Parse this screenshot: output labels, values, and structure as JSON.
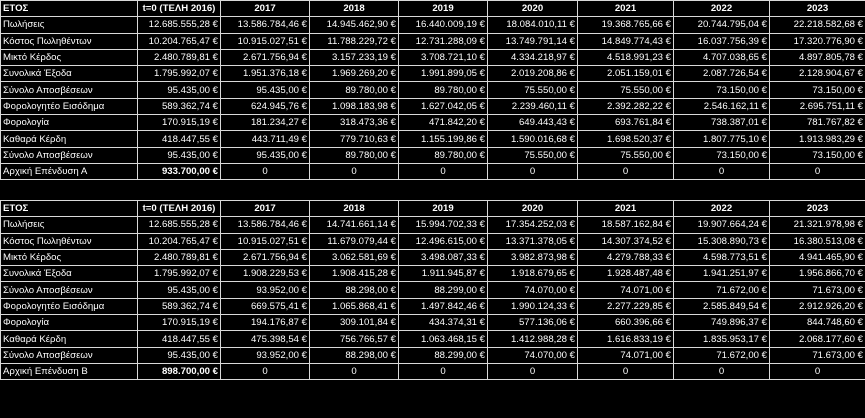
{
  "table_a": {
    "header": [
      "ΕΤΟΣ",
      "t=0 (ΤΕΛΗ 2016)",
      "2017",
      "2018",
      "2019",
      "2020",
      "2021",
      "2022",
      "2023"
    ],
    "rows": [
      [
        "Πωλήσεις",
        "12.685.555,28 €",
        "13.586.784,46 €",
        "14.945.462,90 €",
        "16.440.009,19 €",
        "18.084.010,11 €",
        "19.368.765,66 €",
        "20.744.795,04 €",
        "22.218.582,68 €"
      ],
      [
        "Κόστος Πωληθέντων",
        "10.204.765,47 €",
        "10.915.027,51 €",
        "11.788.229,72 €",
        "12.731.288,09 €",
        "13.749.791,14 €",
        "14.849.774,43 €",
        "16.037.756,39 €",
        "17.320.776,90 €"
      ],
      [
        "Μικτό Κέρδος",
        "2.480.789,81 €",
        "2.671.756,94 €",
        "3.157.233,19 €",
        "3.708.721,10 €",
        "4.334.218,97 €",
        "4.518.991,23 €",
        "4.707.038,65 €",
        "4.897.805,78 €"
      ],
      [
        "Συνολικά Έξοδα",
        "1.795.992,07 €",
        "1.951.376,18 €",
        "1.969.269,20 €",
        "1.991.899,05 €",
        "2.019.208,86 €",
        "2.051.159,01 €",
        "2.087.726,54 €",
        "2.128.904,67 €"
      ],
      [
        "Σύνολο Αποσβέσεων",
        "95.435,00 €",
        "95.435,00 €",
        "89.780,00 €",
        "89.780,00 €",
        "75.550,00 €",
        "75.550,00 €",
        "73.150,00 €",
        "73.150,00 €"
      ],
      [
        "Φορολογητέο Εισόδημα",
        "589.362,74 €",
        "624.945,76 €",
        "1.098.183,98 €",
        "1.627.042,05 €",
        "2.239.460,11 €",
        "2.392.282,22 €",
        "2.546.162,11 €",
        "2.695.751,11 €"
      ],
      [
        "Φορολογία",
        "170.915,19 €",
        "181.234,27 €",
        "318.473,36 €",
        "471.842,20 €",
        "649.443,43 €",
        "693.761,84 €",
        "738.387,01 €",
        "781.767,82 €"
      ],
      [
        "Καθαρά Κέρδη",
        "418.447,55 €",
        "443.711,49 €",
        "779.710,63 €",
        "1.155.199,86 €",
        "1.590.016,68 €",
        "1.698.520,37 €",
        "1.807.775,10 €",
        "1.913.983,29 €"
      ],
      [
        "Σύνολο Αποσβέσεων",
        "95.435,00 €",
        "95.435,00 €",
        "89.780,00 €",
        "89.780,00 €",
        "75.550,00 €",
        "75.550,00 €",
        "73.150,00 €",
        "73.150,00 €"
      ],
      [
        "Αρχική Επένδυση Α",
        "933.700,00 €",
        "0",
        "0",
        "0",
        "0",
        "0",
        "0",
        "0"
      ]
    ]
  },
  "table_b": {
    "header": [
      "ΕΤΟΣ",
      "t=0 (ΤΕΛΗ 2016)",
      "2017",
      "2018",
      "2019",
      "2020",
      "2021",
      "2022",
      "2023"
    ],
    "rows": [
      [
        "Πωλήσεις",
        "12.685.555,28 €",
        "13.586.784,46 €",
        "14.741.661,14 €",
        "15.994.702,33 €",
        "17.354.252,03 €",
        "18.587.162,84 €",
        "19.907.664,24 €",
        "21.321.978,98 €"
      ],
      [
        "Κόστος Πωληθέντων",
        "10.204.765,47 €",
        "10.915.027,51 €",
        "11.679.079,44 €",
        "12.496.615,00 €",
        "13.371.378,05 €",
        "14.307.374,52 €",
        "15.308.890,73 €",
        "16.380.513,08 €"
      ],
      [
        "Μικτό Κέρδος",
        "2.480.789,81 €",
        "2.671.756,94 €",
        "3.062.581,69 €",
        "3.498.087,33 €",
        "3.982.873,98 €",
        "4.279.788,33 €",
        "4.598.773,51 €",
        "4.941.465,90 €"
      ],
      [
        "Συνολικά Έξοδα",
        "1.795.992,07 €",
        "1.908.229,53 €",
        "1.908.415,28 €",
        "1.911.945,87 €",
        "1.918.679,65 €",
        "1.928.487,48 €",
        "1.941.251,97 €",
        "1.956.866,70 €"
      ],
      [
        "Σύνολο Αποσβέσεων",
        "95.435,00 €",
        "93.952,00 €",
        "88.298,00 €",
        "88.299,00 €",
        "74.070,00 €",
        "74.071,00 €",
        "71.672,00 €",
        "71.673,00 €"
      ],
      [
        "Φορολογητέο Εισόδημα",
        "589.362,74 €",
        "669.575,41 €",
        "1.065.868,41 €",
        "1.497.842,46 €",
        "1.990.124,33 €",
        "2.277.229,85 €",
        "2.585.849,54 €",
        "2.912.926,20 €"
      ],
      [
        "Φορολογία",
        "170.915,19 €",
        "194.176,87 €",
        "309.101,84 €",
        "434.374,31 €",
        "577.136,06 €",
        "660.396,66 €",
        "749.896,37 €",
        "844.748,60 €"
      ],
      [
        "Καθαρά Κέρδη",
        "418.447,55 €",
        "475.398,54 €",
        "756.766,57 €",
        "1.063.468,15 €",
        "1.412.988,28 €",
        "1.616.833,19 €",
        "1.835.953,17 €",
        "2.068.177,60 €"
      ],
      [
        "Σύνολο Αποσβέσεων",
        "95.435,00 €",
        "93.952,00 €",
        "88.298,00 €",
        "88.299,00 €",
        "74.070,00 €",
        "74.071,00 €",
        "71.672,00 €",
        "71.673,00 €"
      ],
      [
        "Αρχική Επένδυση Β",
        "898.700,00 €",
        "0",
        "0",
        "0",
        "0",
        "0",
        "0",
        "0"
      ]
    ]
  }
}
